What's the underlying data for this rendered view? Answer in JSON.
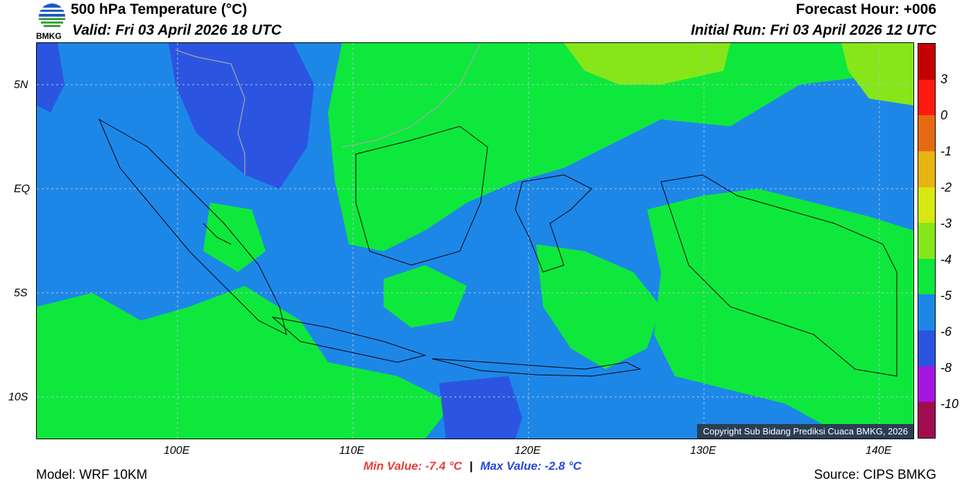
{
  "header": {
    "title": "500 hPa Temperature (°C)",
    "valid": "Valid: Fri 03 April 2026 18 UTC",
    "forecast_hour": "Forecast Hour: +006",
    "initial_run": "Initial Run: Fri 03 April 2026 12 UTC",
    "logo_text": "BMKG"
  },
  "map": {
    "lat_labels": [
      "5N",
      "EQ",
      "5S",
      "10S"
    ],
    "lon_labels": [
      "100E",
      "110E",
      "120E",
      "130E",
      "140E"
    ],
    "copyright": "Copyright Sub Bidang Prediksi Cuaca BMKG, 2026"
  },
  "colorbar": {
    "labels": [
      "3",
      "0",
      "-1",
      "-2",
      "-3",
      "-4",
      "-5",
      "-6",
      "-8",
      "-10"
    ],
    "colors": [
      "#c40000",
      "#ff1a10",
      "#e86a10",
      "#e8b410",
      "#d8e810",
      "#86e61a",
      "#0ee83c",
      "#1d87e8",
      "#2b55e0",
      "#a516e0",
      "#a00c4e"
    ]
  },
  "footer": {
    "model": "Model: WRF 10KM",
    "min_value": "Min Value: -7.4 °C",
    "separator": "|",
    "max_value": "Max Value: -2.8 °C",
    "source": "Source: CIPS BMKG"
  }
}
